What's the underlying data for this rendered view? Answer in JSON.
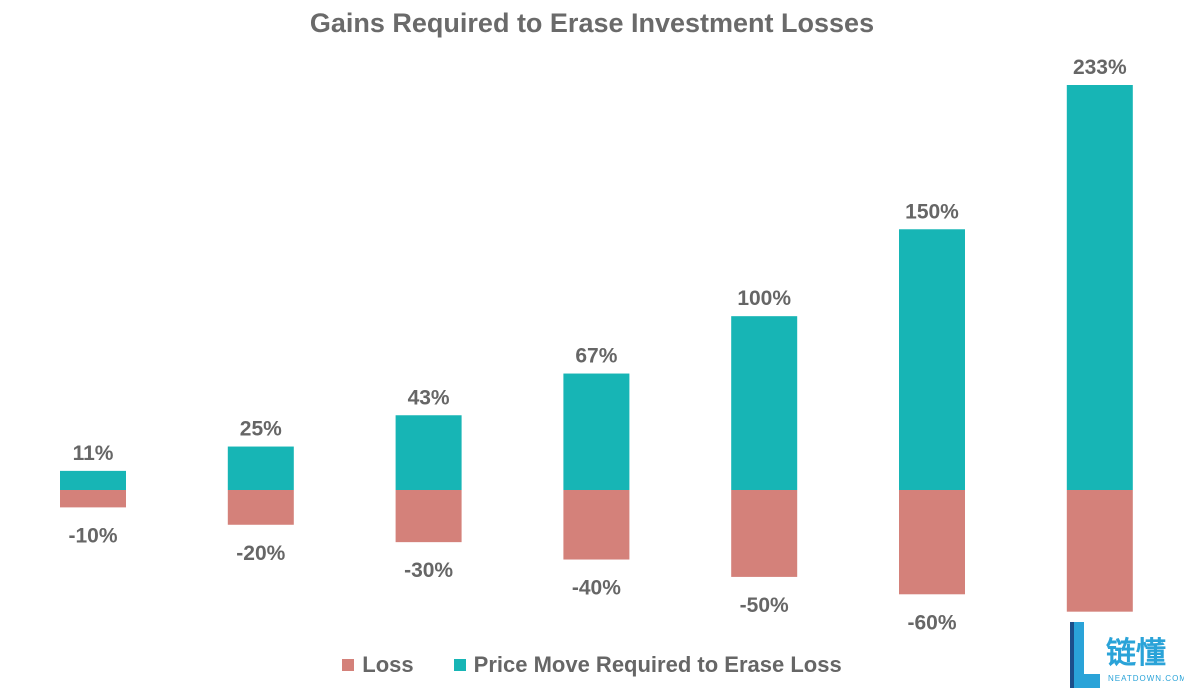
{
  "chart_data": {
    "type": "bar",
    "title": "Gains Required to Erase Investment Losses",
    "series": [
      {
        "name": "Loss",
        "values": [
          -10,
          -20,
          -30,
          -40,
          -50,
          -60,
          -70
        ],
        "labels": [
          "-10%",
          "-20%",
          "-30%",
          "-40%",
          "-50%",
          "-60%",
          ""
        ],
        "color": "#d4817a"
      },
      {
        "name": "Price Move Required to Erase Loss",
        "values": [
          11,
          25,
          43,
          67,
          100,
          150,
          233
        ],
        "labels": [
          "11%",
          "25%",
          "43%",
          "67%",
          "100%",
          "150%",
          "233%"
        ],
        "color": "#17b5b5"
      }
    ],
    "ylim": [
      -70,
      233
    ],
    "grid": false,
    "legend": "bottom-center"
  },
  "watermark": {
    "text": "链懂",
    "subtext": "NEATDOWN.COM"
  }
}
